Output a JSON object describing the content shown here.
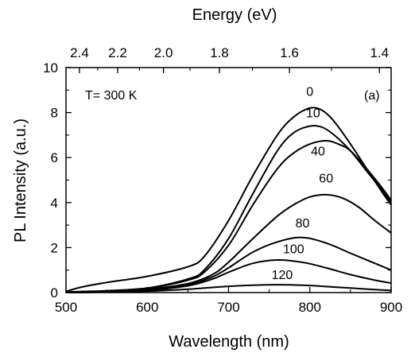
{
  "chart_data": {
    "type": "line",
    "xlabel": "Wavelength (nm)",
    "ylabel": "PL Intensity (a.u.)",
    "x2label": "Energy (eV)",
    "xlim": [
      500,
      900
    ],
    "ylim": [
      0,
      10
    ],
    "xticks": [
      500,
      600,
      700,
      800,
      900
    ],
    "yticks": [
      0,
      2,
      4,
      6,
      8,
      10
    ],
    "x2ticks": [
      2.4,
      2.2,
      2.0,
      1.8,
      1.6,
      1.4
    ],
    "annotations": {
      "temperature": "T= 300 K",
      "panel": "(a)"
    },
    "grid": false,
    "series": [
      {
        "name": "0",
        "x": [
          500,
          520,
          550,
          600,
          650,
          670,
          700,
          730,
          760,
          780,
          800,
          815,
          830,
          850,
          870,
          890,
          900
        ],
        "y": [
          0.05,
          0.25,
          0.45,
          0.72,
          1.15,
          1.6,
          3.2,
          5.2,
          7.0,
          7.8,
          8.2,
          8.1,
          7.6,
          6.6,
          5.5,
          4.4,
          3.9
        ]
      },
      {
        "name": "10",
        "x": [
          500,
          520,
          550,
          600,
          650,
          670,
          700,
          730,
          760,
          780,
          800,
          815,
          830,
          850,
          870,
          890,
          900
        ],
        "y": [
          0.02,
          0.05,
          0.08,
          0.2,
          0.6,
          1.0,
          2.4,
          4.4,
          6.3,
          7.1,
          7.4,
          7.35,
          7.0,
          6.3,
          5.4,
          4.5,
          4.0
        ]
      },
      {
        "name": "40",
        "x": [
          500,
          550,
          600,
          650,
          670,
          700,
          730,
          760,
          780,
          800,
          820,
          835,
          850,
          870,
          890,
          900
        ],
        "y": [
          0.02,
          0.06,
          0.18,
          0.55,
          0.9,
          2.1,
          3.9,
          5.5,
          6.2,
          6.6,
          6.75,
          6.6,
          6.3,
          5.5,
          4.6,
          4.1
        ]
      },
      {
        "name": "60",
        "x": [
          500,
          550,
          600,
          650,
          680,
          700,
          730,
          760,
          780,
          800,
          820,
          840,
          860,
          880,
          900
        ],
        "y": [
          0.0,
          0.05,
          0.15,
          0.4,
          0.8,
          1.35,
          2.4,
          3.4,
          3.9,
          4.25,
          4.35,
          4.2,
          3.8,
          3.2,
          2.65
        ]
      },
      {
        "name": "80",
        "x": [
          500,
          550,
          600,
          650,
          680,
          700,
          730,
          760,
          790,
          820,
          850,
          880,
          900
        ],
        "y": [
          0.0,
          0.04,
          0.12,
          0.35,
          0.7,
          1.1,
          1.8,
          2.25,
          2.45,
          2.2,
          1.75,
          1.3,
          1.0
        ]
      },
      {
        "name": "100",
        "x": [
          500,
          550,
          600,
          650,
          680,
          700,
          730,
          760,
          790,
          820,
          850,
          880,
          900
        ],
        "y": [
          0.0,
          0.03,
          0.1,
          0.3,
          0.6,
          0.9,
          1.3,
          1.45,
          1.35,
          1.1,
          0.8,
          0.55,
          0.42
        ]
      },
      {
        "name": "120",
        "x": [
          500,
          550,
          600,
          650,
          700,
          730,
          760,
          790,
          820,
          850,
          880,
          900
        ],
        "y": [
          0.0,
          0.02,
          0.06,
          0.15,
          0.28,
          0.33,
          0.35,
          0.33,
          0.27,
          0.2,
          0.13,
          0.1
        ]
      }
    ],
    "series_labels": [
      {
        "text": "0",
        "x": 800,
        "y": 8.75
      },
      {
        "text": "10",
        "x": 804,
        "y": 7.8
      },
      {
        "text": "40",
        "x": 810,
        "y": 6.1
      },
      {
        "text": "60",
        "x": 820,
        "y": 4.9
      },
      {
        "text": "80",
        "x": 791,
        "y": 2.9
      },
      {
        "text": "100",
        "x": 780,
        "y": 1.75
      },
      {
        "text": "120",
        "x": 766,
        "y": 0.6
      }
    ]
  }
}
